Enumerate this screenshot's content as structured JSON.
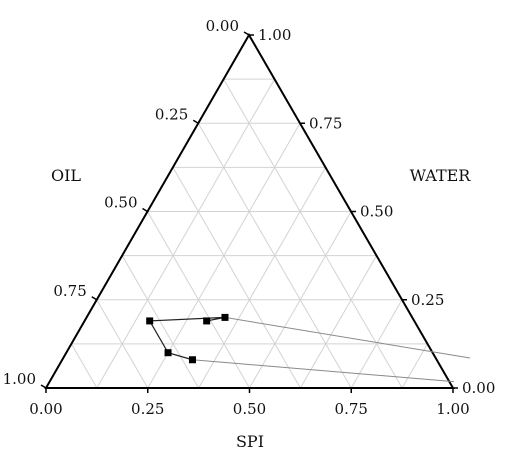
{
  "chart_data": {
    "type": "scatter",
    "subtype": "ternary",
    "axes": {
      "bottom": {
        "label": "SPI",
        "ticks": [
          "0.00",
          "0.25",
          "0.50",
          "0.75",
          "1.00"
        ]
      },
      "left": {
        "label": "OIL",
        "ticks": [
          "0.00",
          "0.25",
          "0.50",
          "0.75",
          "1.00"
        ]
      },
      "right": {
        "label": "WATER",
        "ticks": [
          "1.00",
          "0.75",
          "0.50",
          "0.25",
          "0.00"
        ]
      }
    },
    "grid": true,
    "grid_step": 0.125,
    "points": [
      {
        "spi": 0.16,
        "oil": 0.65,
        "water": 0.19
      },
      {
        "spi": 0.3,
        "oil": 0.51,
        "water": 0.19
      },
      {
        "spi": 0.34,
        "oil": 0.46,
        "water": 0.2
      },
      {
        "spi": 0.25,
        "oil": 0.65,
        "water": 0.1
      },
      {
        "spi": 0.32,
        "oil": 0.6,
        "water": 0.08
      }
    ],
    "series_path": [
      1,
      2,
      0,
      3,
      4
    ],
    "tie_lines": [
      {
        "from": 2,
        "to": {
          "spi": 0.9,
          "oil": 0.0,
          "water": 0.25
        }
      },
      {
        "from": 4,
        "to": {
          "spi": 0.98,
          "oil": 0.0,
          "water": 0.04
        }
      }
    ]
  }
}
